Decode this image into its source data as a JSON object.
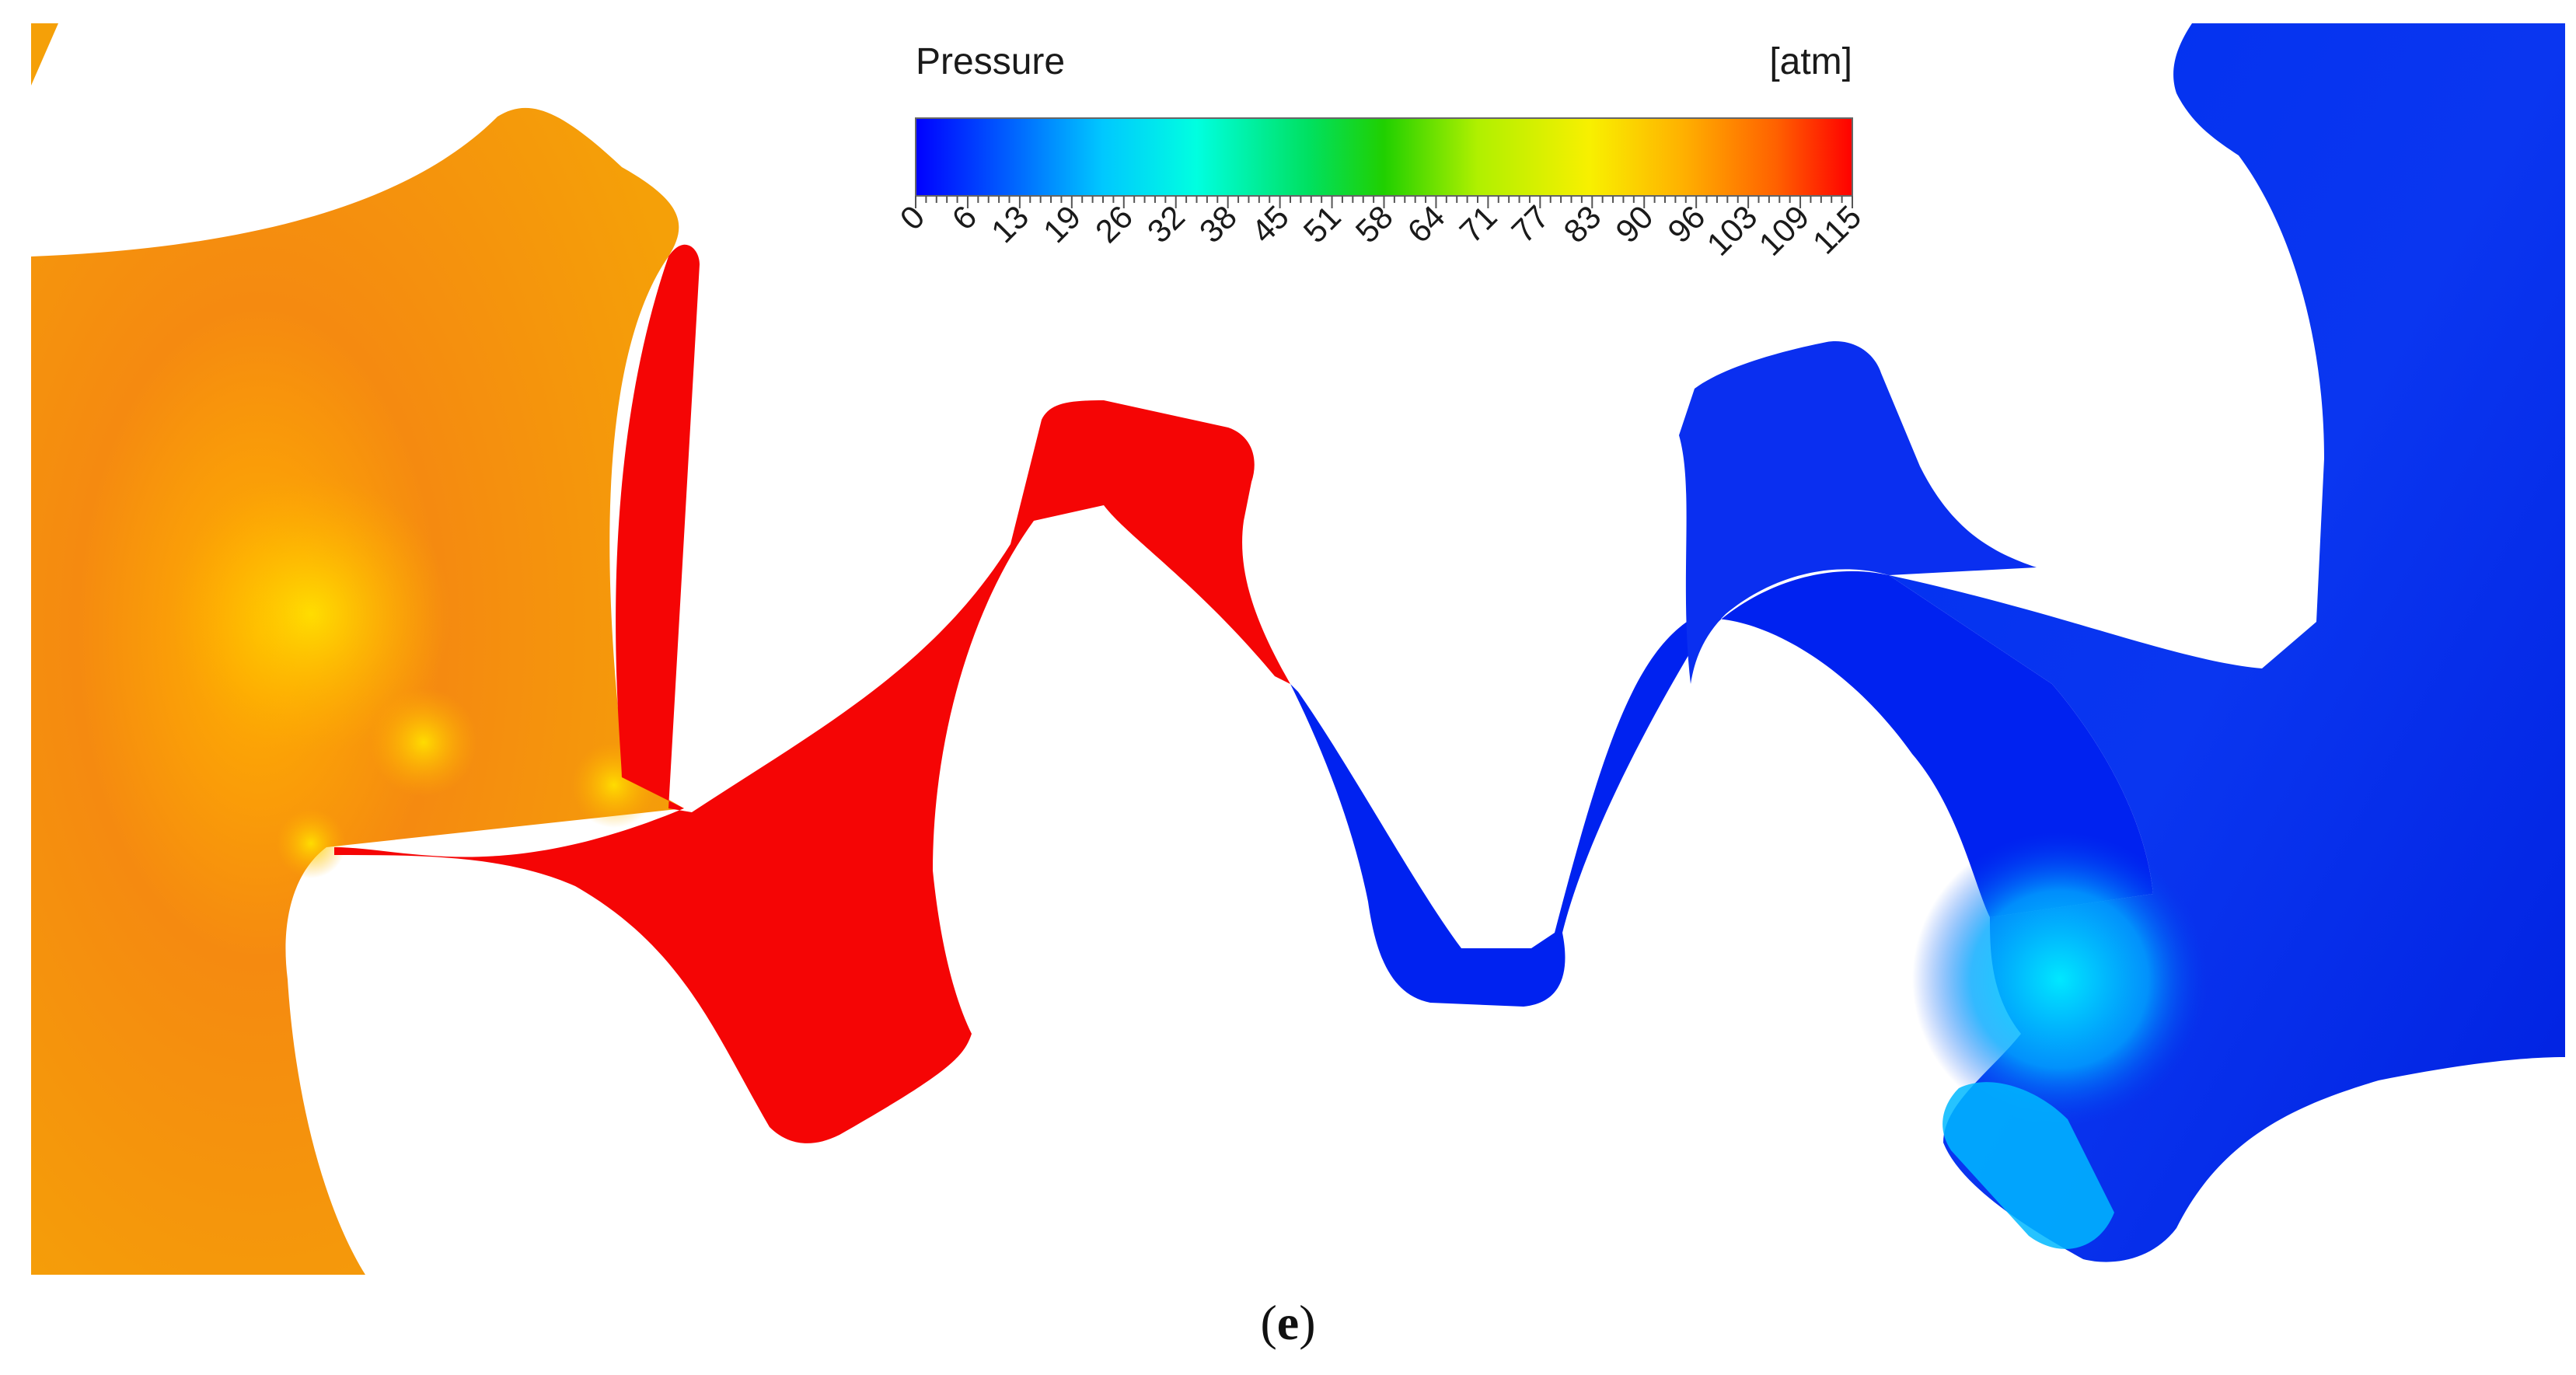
{
  "colorbar": {
    "title": "Pressure",
    "unit": "[atm]",
    "min": 0,
    "max": 115,
    "tick_labels": [
      "0",
      "6",
      "13",
      "19",
      "26",
      "32",
      "38",
      "45",
      "51",
      "58",
      "64",
      "71",
      "77",
      "83",
      "90",
      "96",
      "103",
      "109",
      "115"
    ],
    "colors": [
      "#0000ff",
      "#0060ff",
      "#00c8ff",
      "#00ffd8",
      "#00e060",
      "#20d000",
      "#b0f000",
      "#f0f000",
      "#ffb000",
      "#ff6000",
      "#ff0000"
    ]
  },
  "regions": {
    "left_gear_pressure_atm": 98,
    "left_gap_pressure_atm": 115,
    "right_gap_pressure_atm": 0,
    "right_gear_pressure_atm": 3,
    "right_gear_spot_pressure_atm": 30
  },
  "region_colors": {
    "left_gear": "#f59a10",
    "hot_gap": "#f50505",
    "cold_gap": "#0022f0",
    "right_gear": "#0a2ff0"
  },
  "caption": {
    "open": "(",
    "letter": "e",
    "close": ")"
  }
}
